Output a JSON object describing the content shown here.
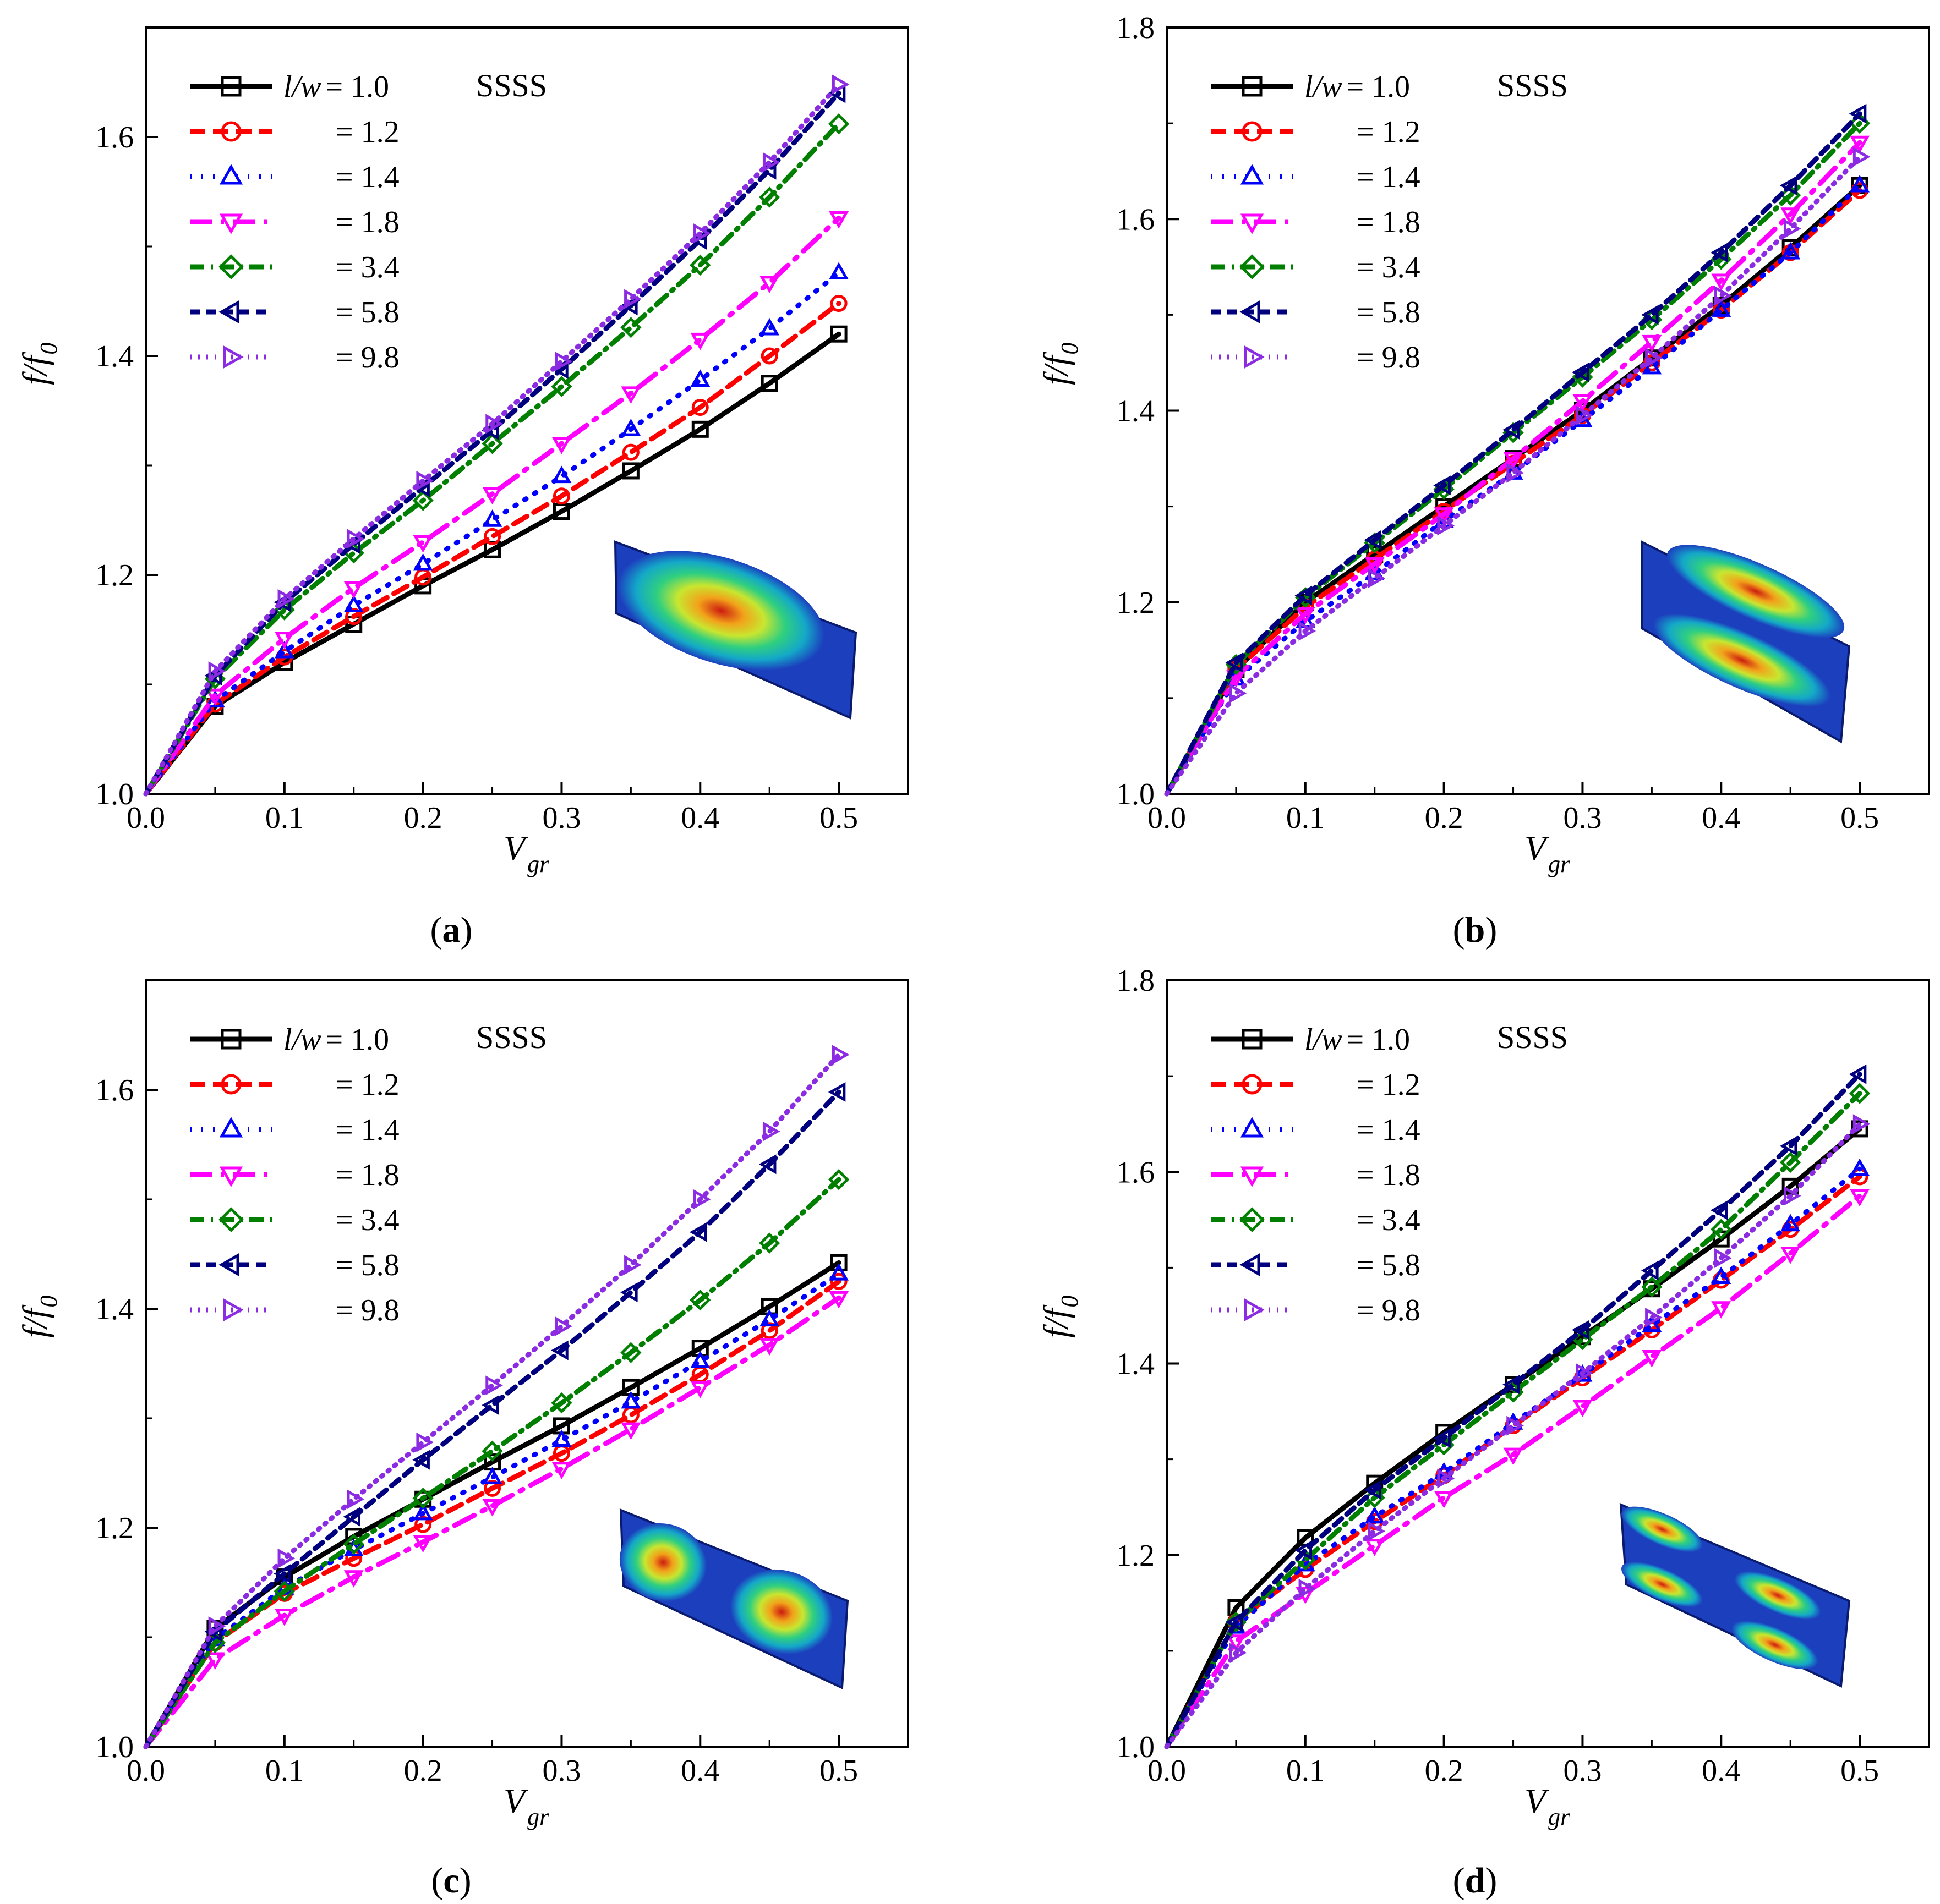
{
  "figure": {
    "series_styles": [
      {
        "color": "#000000",
        "dash": "",
        "width": 9,
        "marker": "square"
      },
      {
        "color": "#ff0000",
        "dash": "28,14",
        "width": 9,
        "marker": "circle"
      },
      {
        "color": "#0000ff",
        "dash": "3,18",
        "width": 9,
        "marker": "triangle-up"
      },
      {
        "color": "#ff00ff",
        "dash": "40,16,6,16",
        "width": 9,
        "marker": "triangle-down"
      },
      {
        "color": "#007f00",
        "dash": "26,12,4,12",
        "width": 9,
        "marker": "diamond"
      },
      {
        "color": "#00007f",
        "dash": "18,12",
        "width": 9,
        "marker": "triangle-left"
      },
      {
        "color": "#8b2be2",
        "dash": "3,12",
        "width": 9,
        "marker": "triangle-right"
      }
    ]
  },
  "chart_data": [
    {
      "panel_label": "a",
      "type": "line",
      "xlabel": "V",
      "xlabel_sub": "gr",
      "ylabel": "f/f",
      "ylabel_sub": "0",
      "annotation": "SSSS",
      "xlim": [
        0,
        0.55
      ],
      "ylim": [
        1.0,
        1.7
      ],
      "xticks": [
        "0.0",
        "0.1",
        "0.2",
        "0.3",
        "0.4",
        "0.5"
      ],
      "yticks": [
        "1.0",
        "1.2",
        "1.4",
        "1.6"
      ],
      "ytick_values": [
        1.0,
        1.2,
        1.4,
        1.6
      ],
      "x": [
        0,
        0.05,
        0.1,
        0.15,
        0.2,
        0.25,
        0.3,
        0.35,
        0.4,
        0.45,
        0.5
      ],
      "legend_prefix": "l/w",
      "series": [
        {
          "name": "= 1.0",
          "values": [
            1.0,
            1.08,
            1.12,
            1.155,
            1.19,
            1.223,
            1.258,
            1.295,
            1.333,
            1.375,
            1.42
          ]
        },
        {
          "name": "= 1.2",
          "values": [
            1.0,
            1.082,
            1.125,
            1.162,
            1.198,
            1.235,
            1.272,
            1.312,
            1.353,
            1.4,
            1.448
          ]
        },
        {
          "name": "= 1.4",
          "values": [
            1.0,
            1.085,
            1.13,
            1.172,
            1.21,
            1.25,
            1.29,
            1.333,
            1.378,
            1.425,
            1.476
          ]
        },
        {
          "name": "= 1.8",
          "values": [
            1.0,
            1.09,
            1.142,
            1.188,
            1.23,
            1.274,
            1.32,
            1.366,
            1.415,
            1.467,
            1.526
          ]
        },
        {
          "name": "= 3.4",
          "values": [
            1.0,
            1.105,
            1.168,
            1.22,
            1.268,
            1.32,
            1.372,
            1.426,
            1.483,
            1.545,
            1.612
          ]
        },
        {
          "name": "= 5.8",
          "values": [
            1.0,
            1.108,
            1.175,
            1.228,
            1.28,
            1.332,
            1.388,
            1.446,
            1.506,
            1.57,
            1.64
          ]
        },
        {
          "name": "= 9.8",
          "values": [
            1.0,
            1.112,
            1.178,
            1.233,
            1.286,
            1.338,
            1.395,
            1.452,
            1.512,
            1.577,
            1.648
          ]
        }
      ]
    },
    {
      "panel_label": "b",
      "type": "line",
      "xlabel": "V",
      "xlabel_sub": "gr",
      "ylabel": "f/f",
      "ylabel_sub": "0",
      "annotation": "SSSS",
      "xlim": [
        0,
        0.55
      ],
      "ylim": [
        1.0,
        1.8
      ],
      "xticks": [
        "0.0",
        "0.1",
        "0.2",
        "0.3",
        "0.4",
        "0.5"
      ],
      "yticks": [
        "1.0",
        "1.2",
        "1.4",
        "1.6",
        "1.8"
      ],
      "ytick_values": [
        1.0,
        1.2,
        1.4,
        1.6,
        1.8
      ],
      "x": [
        0,
        0.05,
        0.1,
        0.15,
        0.2,
        0.25,
        0.3,
        0.35,
        0.4,
        0.45,
        0.5
      ],
      "legend_prefix": "l/w",
      "series": [
        {
          "name": "= 1.0",
          "values": [
            1.0,
            1.13,
            1.2,
            1.25,
            1.3,
            1.35,
            1.4,
            1.455,
            1.51,
            1.57,
            1.635
          ]
        },
        {
          "name": "= 1.2",
          "values": [
            1.0,
            1.13,
            1.195,
            1.245,
            1.295,
            1.345,
            1.395,
            1.45,
            1.505,
            1.565,
            1.63
          ]
        },
        {
          "name": "= 1.4",
          "values": [
            1.0,
            1.12,
            1.18,
            1.23,
            1.285,
            1.335,
            1.39,
            1.445,
            1.505,
            1.565,
            1.635
          ]
        },
        {
          "name": "= 1.8",
          "values": [
            1.0,
            1.122,
            1.188,
            1.24,
            1.292,
            1.35,
            1.41,
            1.472,
            1.536,
            1.605,
            1.68
          ]
        },
        {
          "name": "= 3.4",
          "values": [
            1.0,
            1.135,
            1.205,
            1.262,
            1.318,
            1.377,
            1.435,
            1.495,
            1.558,
            1.625,
            1.7
          ]
        },
        {
          "name": "= 5.8",
          "values": [
            1.0,
            1.137,
            1.207,
            1.265,
            1.322,
            1.38,
            1.44,
            1.5,
            1.565,
            1.635,
            1.71
          ]
        },
        {
          "name": "= 9.8",
          "values": [
            1.0,
            1.105,
            1.17,
            1.225,
            1.28,
            1.335,
            1.395,
            1.455,
            1.52,
            1.59,
            1.665
          ]
        }
      ]
    },
    {
      "panel_label": "c",
      "type": "line",
      "xlabel": "V",
      "xlabel_sub": "gr",
      "ylabel": "f/f",
      "ylabel_sub": "0",
      "annotation": "SSSS",
      "xlim": [
        0,
        0.55
      ],
      "ylim": [
        1.0,
        1.7
      ],
      "xticks": [
        "0.0",
        "0.1",
        "0.2",
        "0.3",
        "0.4",
        "0.5"
      ],
      "yticks": [
        "1.0",
        "1.2",
        "1.4",
        "1.6"
      ],
      "ytick_values": [
        1.0,
        1.2,
        1.4,
        1.6
      ],
      "x": [
        0,
        0.05,
        0.1,
        0.15,
        0.2,
        0.25,
        0.3,
        0.35,
        0.4,
        0.45,
        0.5
      ],
      "legend_prefix": "l/w",
      "series": [
        {
          "name": "= 1.0",
          "values": [
            1.0,
            1.108,
            1.155,
            1.192,
            1.226,
            1.26,
            1.293,
            1.328,
            1.364,
            1.402,
            1.442
          ]
        },
        {
          "name": "= 1.2",
          "values": [
            1.0,
            1.095,
            1.14,
            1.172,
            1.203,
            1.236,
            1.268,
            1.303,
            1.34,
            1.38,
            1.425
          ]
        },
        {
          "name": "= 1.4",
          "values": [
            1.0,
            1.098,
            1.145,
            1.18,
            1.213,
            1.246,
            1.28,
            1.315,
            1.352,
            1.39,
            1.432
          ]
        },
        {
          "name": "= 1.8",
          "values": [
            1.0,
            1.08,
            1.12,
            1.155,
            1.187,
            1.22,
            1.254,
            1.29,
            1.328,
            1.367,
            1.41
          ]
        },
        {
          "name": "= 3.4",
          "values": [
            1.0,
            1.095,
            1.142,
            1.185,
            1.227,
            1.27,
            1.314,
            1.36,
            1.408,
            1.46,
            1.518
          ]
        },
        {
          "name": "= 5.8",
          "values": [
            1.0,
            1.105,
            1.158,
            1.21,
            1.262,
            1.312,
            1.362,
            1.415,
            1.47,
            1.532,
            1.598
          ]
        },
        {
          "name": "= 9.8",
          "values": [
            1.0,
            1.11,
            1.172,
            1.226,
            1.278,
            1.33,
            1.384,
            1.44,
            1.5,
            1.562,
            1.632
          ]
        }
      ]
    },
    {
      "panel_label": "d",
      "type": "line",
      "xlabel": "V",
      "xlabel_sub": "gr",
      "ylabel": "f/f",
      "ylabel_sub": "0",
      "annotation": "SSSS",
      "xlim": [
        0,
        0.55
      ],
      "ylim": [
        1.0,
        1.8
      ],
      "xticks": [
        "0.0",
        "0.1",
        "0.2",
        "0.3",
        "0.4",
        "0.5"
      ],
      "yticks": [
        "1.0",
        "1.2",
        "1.4",
        "1.6",
        "1.8"
      ],
      "ytick_values": [
        1.0,
        1.2,
        1.4,
        1.6,
        1.8
      ],
      "x": [
        0,
        0.05,
        0.1,
        0.15,
        0.2,
        0.25,
        0.3,
        0.35,
        0.4,
        0.45,
        0.5
      ],
      "legend_prefix": "l/w",
      "series": [
        {
          "name": "= 1.0",
          "values": [
            1.0,
            1.145,
            1.218,
            1.275,
            1.328,
            1.378,
            1.428,
            1.478,
            1.53,
            1.585,
            1.645
          ]
        },
        {
          "name": "= 1.2",
          "values": [
            1.0,
            1.13,
            1.185,
            1.235,
            1.283,
            1.335,
            1.385,
            1.435,
            1.487,
            1.54,
            1.595
          ]
        },
        {
          "name": "= 1.4",
          "values": [
            1.0,
            1.125,
            1.19,
            1.24,
            1.286,
            1.338,
            1.388,
            1.44,
            1.49,
            1.545,
            1.603
          ]
        },
        {
          "name": "= 1.8",
          "values": [
            1.0,
            1.11,
            1.16,
            1.21,
            1.26,
            1.305,
            1.355,
            1.407,
            1.458,
            1.515,
            1.575
          ]
        },
        {
          "name": "= 3.4",
          "values": [
            1.0,
            1.13,
            1.195,
            1.26,
            1.315,
            1.37,
            1.425,
            1.48,
            1.54,
            1.61,
            1.682
          ]
        },
        {
          "name": "= 5.8",
          "values": [
            1.0,
            1.13,
            1.205,
            1.268,
            1.322,
            1.378,
            1.435,
            1.497,
            1.56,
            1.627,
            1.702
          ]
        },
        {
          "name": "= 9.8",
          "values": [
            1.0,
            1.098,
            1.165,
            1.225,
            1.28,
            1.335,
            1.39,
            1.448,
            1.51,
            1.575,
            1.65
          ]
        }
      ]
    }
  ]
}
